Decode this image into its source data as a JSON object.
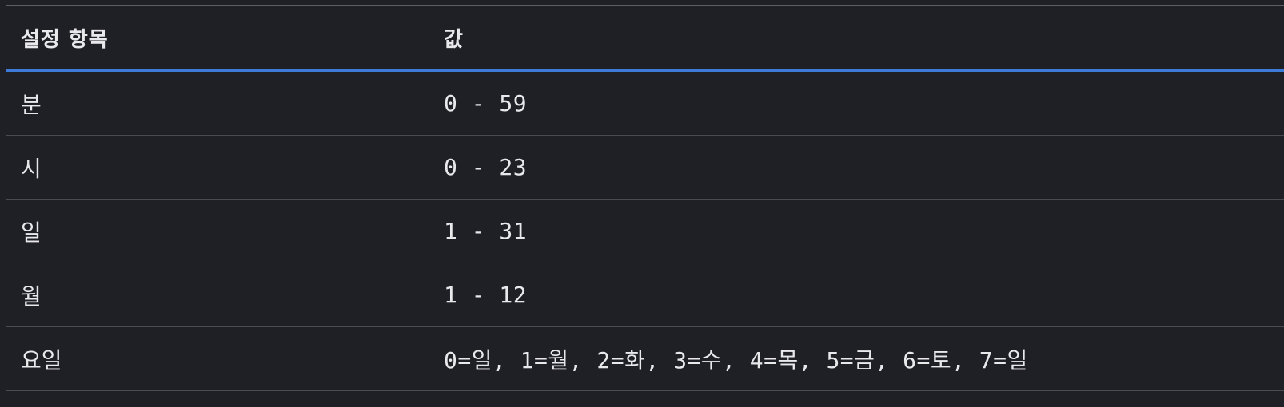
{
  "table": {
    "headers": {
      "setting": "설정 항목",
      "value": "값"
    },
    "rows": [
      {
        "setting": "분",
        "value": "0 - 59"
      },
      {
        "setting": "시",
        "value": "0 - 23"
      },
      {
        "setting": "일",
        "value": "1 - 31"
      },
      {
        "setting": "월",
        "value": "1 - 12"
      },
      {
        "setting": "요일",
        "value": "0=일, 1=월, 2=화, 3=수, 4=목, 5=금, 6=토, 7=일"
      }
    ]
  },
  "colors": {
    "background": "#1f2026",
    "text": "#e9e9ec",
    "header_underline": "#3d7bd8",
    "row_divider": "#4a4b52"
  }
}
